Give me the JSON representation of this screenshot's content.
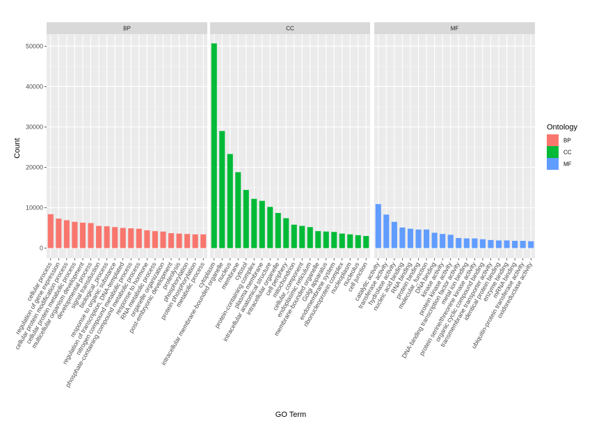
{
  "chart_data": {
    "type": "bar",
    "xlabel": "GO Term",
    "ylabel": "Count",
    "ylim": [
      -2500,
      53000
    ],
    "yticks": [
      0,
      10000,
      20000,
      30000,
      40000,
      50000
    ],
    "grid": true,
    "legend": {
      "title": "Ontology",
      "position": "right",
      "entries": [
        {
          "name": "BP",
          "color": "#F8766D"
        },
        {
          "name": "CC",
          "color": "#00BA38"
        },
        {
          "name": "MF",
          "color": "#619CFF"
        }
      ]
    },
    "facets": [
      {
        "name": "BP",
        "color": "#F8766D",
        "categories": [
          "cellular process",
          "regulation of gene expression",
          "cellular protein modification process",
          "cellular protein metabolic process",
          "multicellular organism development",
          "developmental process",
          "signal transduction",
          "biological_process",
          "response to organic substance",
          "regulation of transcription, DNA-templated",
          "nitrogen compound metabolic process",
          "phosphate-containing compound metabolic process",
          "response to hormone",
          "RNA metabolic process",
          "organelle organization",
          "post-embryonic development",
          "proteolysis",
          "phosphorylation",
          "protein phosphorylation",
          "metabolic process"
        ],
        "values": [
          8400,
          7300,
          6900,
          6500,
          6300,
          6200,
          5500,
          5400,
          5200,
          5000,
          4900,
          4800,
          4400,
          4200,
          4100,
          3700,
          3600,
          3500,
          3400,
          3400
        ]
      },
      {
        "name": "CC",
        "color": "#00BA38",
        "categories": [
          "cytoplasm",
          "intracellular membrane-bounded organelle",
          "nucleus",
          "membrane",
          "cytosol",
          "protein-containing complex",
          "plasma membrane",
          "intracellular anatomical structure",
          "intracellular organelle",
          "cell periphery",
          "mitochondrion",
          "cellular_component",
          "endoplasmic reticulum",
          "membrane-bounded organelle",
          "Golgi apparatus",
          "endomembrane system",
          "ribonucleoprotein complex",
          "nucleoplasm",
          "nucleolus",
          "cell junction"
        ],
        "values": [
          50700,
          29000,
          23300,
          18800,
          14400,
          12200,
          11700,
          10200,
          8700,
          7400,
          5800,
          5500,
          5200,
          4200,
          4100,
          4000,
          3600,
          3400,
          3200,
          3000
        ]
      },
      {
        "name": "MF",
        "color": "#619CFF",
        "categories": [
          "catalytic activity",
          "transferase activity",
          "hydrolase activity",
          "nucleic acid binding",
          "RNA binding",
          "protein binding",
          "molecular_function",
          "DNA binding",
          "kinase activity",
          "protein kinase activity",
          "DNA-binding transcription factor activity",
          "metal ion binding",
          "protein serine/threonine kinase activity",
          "organic cyclic compound binding",
          "transmembrane transporter activity",
          "identical protein binding",
          "enzyme binding",
          "mRNA binding",
          "ubiquitin-protein transferase activity",
          "oxidoreductase activity"
        ],
        "values": [
          10900,
          8300,
          6500,
          5100,
          4800,
          4600,
          4600,
          3800,
          3500,
          3300,
          2500,
          2400,
          2400,
          2200,
          2000,
          1900,
          1900,
          1800,
          1800,
          1700
        ]
      }
    ]
  }
}
